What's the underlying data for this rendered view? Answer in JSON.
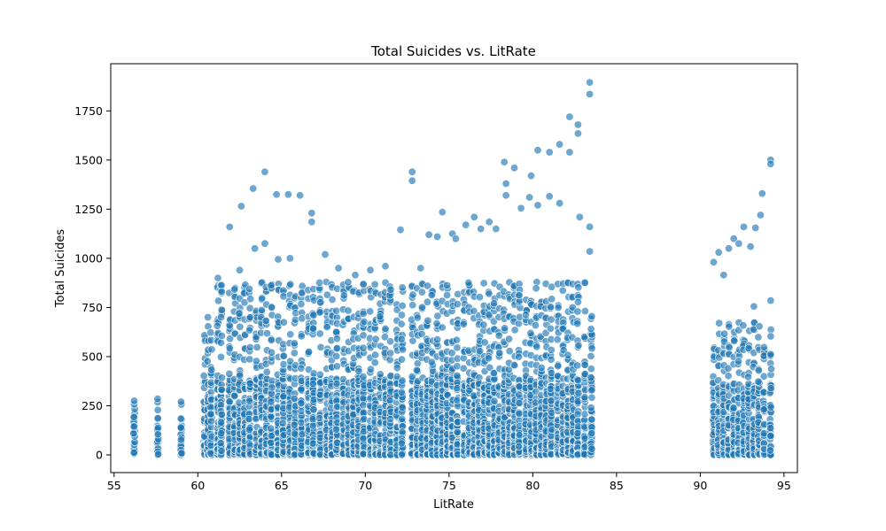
{
  "chart_data": {
    "type": "scatter",
    "title": "Total Suicides vs. LitRate",
    "xlabel": "LitRate",
    "ylabel": "Total Suicides",
    "xlim": [
      54.8,
      95.8
    ],
    "ylim": [
      -90,
      1990
    ],
    "xticks": [
      55,
      60,
      65,
      70,
      75,
      80,
      85,
      90,
      95
    ],
    "yticks": [
      0,
      250,
      500,
      750,
      1000,
      1250,
      1500,
      1750
    ],
    "grid": false,
    "legend": "none",
    "marker_color": "#1f77b4",
    "marker_opacity": 0.65,
    "literacy_rates": [
      56.2,
      57.6,
      59.0,
      60.4,
      60.6,
      60.8,
      61.2,
      61.4,
      61.9,
      62.2,
      62.5,
      62.8,
      63.1,
      63.5,
      63.8,
      64.1,
      64.4,
      64.8,
      65.1,
      65.5,
      65.8,
      66.2,
      66.6,
      66.9,
      67.3,
      67.7,
      68.0,
      68.3,
      68.7,
      69.0,
      69.3,
      69.6,
      69.9,
      70.3,
      70.6,
      70.9,
      71.2,
      71.5,
      71.9,
      72.2,
      72.8,
      73.1,
      73.4,
      73.7,
      74.0,
      74.3,
      74.6,
      74.9,
      75.2,
      75.5,
      75.9,
      76.2,
      76.5,
      76.8,
      77.1,
      77.4,
      77.7,
      78.0,
      78.3,
      78.6,
      78.9,
      79.2,
      79.6,
      79.9,
      80.2,
      80.5,
      80.8,
      81.1,
      81.5,
      81.8,
      82.1,
      82.4,
      82.7,
      83.1,
      83.5,
      90.8,
      91.1,
      91.4,
      91.7,
      92.0,
      92.3,
      92.6,
      92.9,
      93.2,
      93.5,
      93.8,
      94.2
    ],
    "highlights": [
      {
        "x": 56.2,
        "y": 275
      },
      {
        "x": 57.6,
        "y": 285
      },
      {
        "x": 59.0,
        "y": 270
      },
      {
        "x": 60.6,
        "y": 700
      },
      {
        "x": 61.2,
        "y": 900
      },
      {
        "x": 61.9,
        "y": 1160
      },
      {
        "x": 62.5,
        "y": 940
      },
      {
        "x": 62.6,
        "y": 1265
      },
      {
        "x": 63.3,
        "y": 1355
      },
      {
        "x": 63.4,
        "y": 1050
      },
      {
        "x": 64.0,
        "y": 1440
      },
      {
        "x": 64.0,
        "y": 1075
      },
      {
        "x": 64.7,
        "y": 1325
      },
      {
        "x": 64.8,
        "y": 995
      },
      {
        "x": 65.4,
        "y": 1325
      },
      {
        "x": 65.5,
        "y": 1000
      },
      {
        "x": 66.1,
        "y": 1320
      },
      {
        "x": 66.8,
        "y": 1230
      },
      {
        "x": 66.8,
        "y": 1185
      },
      {
        "x": 67.6,
        "y": 1020
      },
      {
        "x": 68.4,
        "y": 950
      },
      {
        "x": 69.4,
        "y": 915
      },
      {
        "x": 70.3,
        "y": 940
      },
      {
        "x": 71.2,
        "y": 960
      },
      {
        "x": 72.1,
        "y": 1145
      },
      {
        "x": 72.8,
        "y": 1440
      },
      {
        "x": 72.8,
        "y": 1395
      },
      {
        "x": 73.3,
        "y": 950
      },
      {
        "x": 73.8,
        "y": 1120
      },
      {
        "x": 74.3,
        "y": 1110
      },
      {
        "x": 74.6,
        "y": 1235
      },
      {
        "x": 75.2,
        "y": 1125
      },
      {
        "x": 75.4,
        "y": 1100
      },
      {
        "x": 76.0,
        "y": 1170
      },
      {
        "x": 76.5,
        "y": 1210
      },
      {
        "x": 76.9,
        "y": 1150
      },
      {
        "x": 77.4,
        "y": 1185
      },
      {
        "x": 77.8,
        "y": 1150
      },
      {
        "x": 78.3,
        "y": 1490
      },
      {
        "x": 78.4,
        "y": 1380
      },
      {
        "x": 78.4,
        "y": 1320
      },
      {
        "x": 78.9,
        "y": 1460
      },
      {
        "x": 79.3,
        "y": 1255
      },
      {
        "x": 79.9,
        "y": 1420
      },
      {
        "x": 79.8,
        "y": 1310
      },
      {
        "x": 80.3,
        "y": 1550
      },
      {
        "x": 80.3,
        "y": 1270
      },
      {
        "x": 81.0,
        "y": 1540
      },
      {
        "x": 81.0,
        "y": 1315
      },
      {
        "x": 81.6,
        "y": 1580
      },
      {
        "x": 81.6,
        "y": 1280
      },
      {
        "x": 82.2,
        "y": 1720
      },
      {
        "x": 82.2,
        "y": 1540
      },
      {
        "x": 82.7,
        "y": 1680
      },
      {
        "x": 82.7,
        "y": 1635
      },
      {
        "x": 82.8,
        "y": 1210
      },
      {
        "x": 83.4,
        "y": 1895
      },
      {
        "x": 83.4,
        "y": 1835
      },
      {
        "x": 83.4,
        "y": 1160
      },
      {
        "x": 83.4,
        "y": 1035
      },
      {
        "x": 90.8,
        "y": 980
      },
      {
        "x": 91.1,
        "y": 1030
      },
      {
        "x": 91.4,
        "y": 915
      },
      {
        "x": 91.7,
        "y": 1050
      },
      {
        "x": 92.0,
        "y": 1100
      },
      {
        "x": 92.3,
        "y": 1075
      },
      {
        "x": 92.6,
        "y": 1160
      },
      {
        "x": 93.0,
        "y": 1060
      },
      {
        "x": 93.3,
        "y": 1155
      },
      {
        "x": 93.6,
        "y": 1220
      },
      {
        "x": 93.7,
        "y": 1330
      },
      {
        "x": 94.2,
        "y": 1500
      },
      {
        "x": 94.2,
        "y": 1480
      },
      {
        "x": 93.2,
        "y": 755
      },
      {
        "x": 94.2,
        "y": 785
      }
    ]
  }
}
